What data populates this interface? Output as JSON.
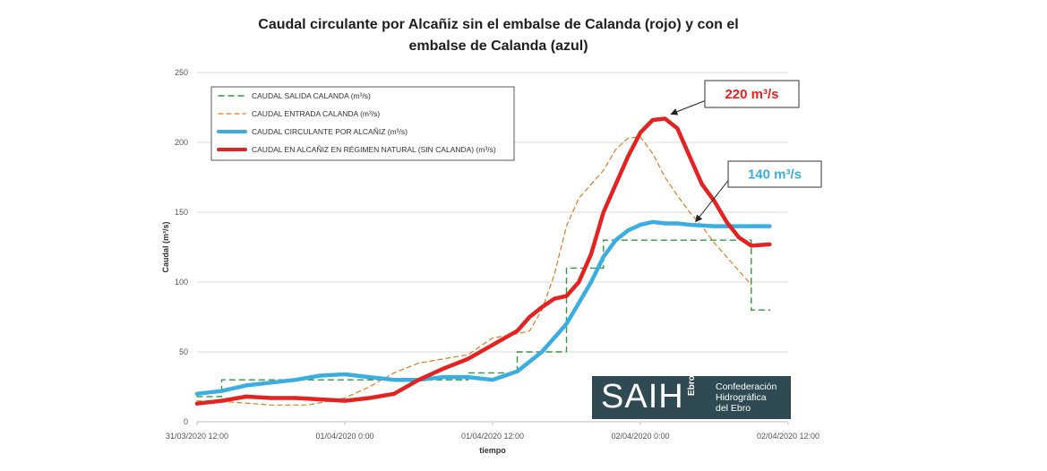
{
  "chart_data": {
    "type": "line",
    "title": [
      "Caudal circulante por Alcañiz sin el embalse de Calanda (rojo) y con el",
      "embalse de Calanda (azul)"
    ],
    "xlabel": "tiempo",
    "ylabel": "Caudal (m³/s)",
    "ylim": [
      0,
      250
    ],
    "yticks": [
      "0",
      "50",
      "100",
      "150",
      "200",
      "250"
    ],
    "xticks": [
      "31/03/2020 12:00",
      "01/04/2020 0:00",
      "01/04/2020 12:00",
      "02/04/2020 0:00",
      "02/04/2020 12:00"
    ],
    "xrange_hours": [
      0,
      48
    ],
    "grid": true,
    "legend_position": "top-left",
    "series": [
      {
        "name": "CAUDAL SALIDA CALANDA (m³/s)",
        "color": "#2e9a3c",
        "style": "dashed-step",
        "points": [
          [
            0,
            18
          ],
          [
            2,
            18
          ],
          [
            2,
            30
          ],
          [
            22,
            30
          ],
          [
            22,
            35
          ],
          [
            26,
            35
          ],
          [
            26,
            50
          ],
          [
            30,
            50
          ],
          [
            30,
            110
          ],
          [
            33,
            110
          ],
          [
            33,
            130
          ],
          [
            45,
            130
          ],
          [
            45,
            80
          ],
          [
            46.5,
            80
          ]
        ]
      },
      {
        "name": "CAUDAL ENTRADA CALANDA (m³/s)",
        "color": "#e07b20",
        "style": "dashed",
        "points": [
          [
            0,
            15
          ],
          [
            3,
            14
          ],
          [
            6,
            12
          ],
          [
            9,
            12
          ],
          [
            12,
            17
          ],
          [
            14,
            25
          ],
          [
            16,
            35
          ],
          [
            18,
            42
          ],
          [
            20,
            45
          ],
          [
            22,
            48
          ],
          [
            24,
            60
          ],
          [
            26,
            63
          ],
          [
            27,
            65
          ],
          [
            28,
            80
          ],
          [
            29,
            105
          ],
          [
            30,
            140
          ],
          [
            31,
            160
          ],
          [
            32,
            170
          ],
          [
            33,
            180
          ],
          [
            34,
            195
          ],
          [
            35,
            203
          ],
          [
            36,
            204
          ],
          [
            37,
            192
          ],
          [
            38,
            175
          ],
          [
            39,
            162
          ],
          [
            40,
            150
          ],
          [
            41,
            140
          ],
          [
            42,
            128
          ],
          [
            43,
            118
          ],
          [
            44,
            108
          ],
          [
            45,
            98
          ]
        ]
      },
      {
        "name": "CAUDAL CIRCULANTE POR ALCAÑIZ (m³/s)",
        "color": "#3aaee0",
        "style": "solid-thick",
        "points": [
          [
            0,
            20
          ],
          [
            2,
            22
          ],
          [
            4,
            26
          ],
          [
            6,
            28
          ],
          [
            8,
            30
          ],
          [
            10,
            33
          ],
          [
            12,
            34
          ],
          [
            14,
            32
          ],
          [
            16,
            30
          ],
          [
            18,
            30
          ],
          [
            20,
            32
          ],
          [
            22,
            32
          ],
          [
            24,
            30
          ],
          [
            26,
            36
          ],
          [
            28,
            50
          ],
          [
            30,
            70
          ],
          [
            32,
            100
          ],
          [
            33,
            118
          ],
          [
            34,
            130
          ],
          [
            35,
            137
          ],
          [
            36,
            141
          ],
          [
            37,
            143
          ],
          [
            38,
            142
          ],
          [
            39,
            142
          ],
          [
            40,
            141
          ],
          [
            42,
            140
          ],
          [
            44,
            140
          ],
          [
            46.5,
            140
          ]
        ]
      },
      {
        "name": "CAUDAL EN ALCAÑIZ EN RÉGIMEN NATURAL (SIN CALANDA) (m³/s)",
        "color": "#e52222",
        "style": "solid-thick",
        "points": [
          [
            0,
            13
          ],
          [
            2,
            15
          ],
          [
            4,
            18
          ],
          [
            6,
            17
          ],
          [
            8,
            17
          ],
          [
            10,
            16
          ],
          [
            12,
            15
          ],
          [
            14,
            17
          ],
          [
            16,
            20
          ],
          [
            18,
            30
          ],
          [
            20,
            38
          ],
          [
            22,
            45
          ],
          [
            24,
            55
          ],
          [
            26,
            65
          ],
          [
            27,
            75
          ],
          [
            28,
            82
          ],
          [
            29,
            88
          ],
          [
            30,
            90
          ],
          [
            31,
            100
          ],
          [
            32,
            120
          ],
          [
            33,
            150
          ],
          [
            34,
            170
          ],
          [
            35,
            190
          ],
          [
            36,
            207
          ],
          [
            37,
            216
          ],
          [
            38,
            217
          ],
          [
            39,
            210
          ],
          [
            40,
            190
          ],
          [
            41,
            170
          ],
          [
            42,
            158
          ],
          [
            43,
            143
          ],
          [
            44,
            132
          ],
          [
            45,
            126
          ],
          [
            46.5,
            127
          ]
        ]
      }
    ],
    "annotations": [
      {
        "text": "220 m³/s",
        "color": "#e52222",
        "x": 38.2,
        "y": 219
      },
      {
        "text": "140 m³/s",
        "color": "#3aaee0",
        "x": 40.2,
        "y": 142
      }
    ]
  },
  "logo": {
    "saih": "SAIH",
    "ebro": "Ebro",
    "org_lines": [
      "Confederación",
      "Hidrográfica",
      "del Ebro"
    ]
  }
}
